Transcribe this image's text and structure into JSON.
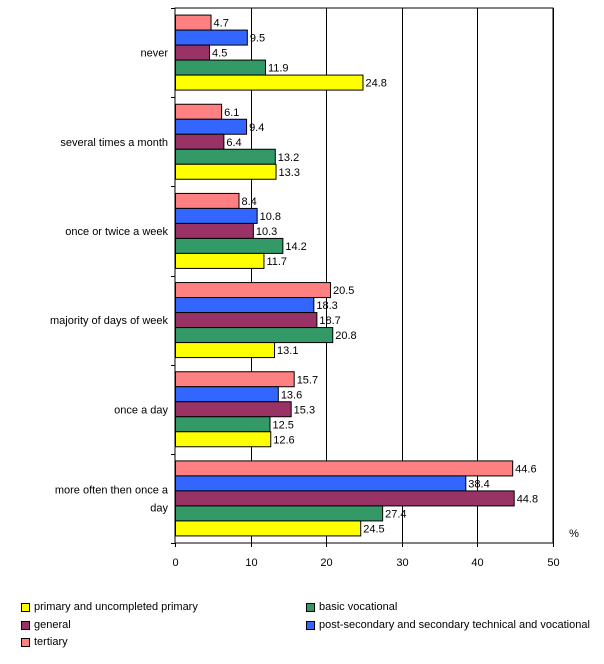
{
  "chart_data": {
    "type": "bar",
    "orientation": "horizontal",
    "categories": [
      "never",
      "several times a month",
      "once or twice a week",
      "majority of days of week",
      "once a day",
      "more often then once a day"
    ],
    "series": [
      {
        "name": "tertiary",
        "color": "#FF8080",
        "values": [
          4.7,
          6.1,
          8.4,
          20.5,
          15.7,
          44.6
        ]
      },
      {
        "name": "post-secondary and secondary technical and vocational",
        "color": "#3366FF",
        "values": [
          9.5,
          9.4,
          10.8,
          18.3,
          13.6,
          38.4
        ]
      },
      {
        "name": "general",
        "color": "#993366",
        "values": [
          4.5,
          6.4,
          10.3,
          18.7,
          15.3,
          44.8
        ]
      },
      {
        "name": "basic vocational",
        "color": "#339966",
        "values": [
          11.9,
          13.2,
          14.2,
          20.8,
          12.5,
          27.4
        ]
      },
      {
        "name": "primary and uncompleted primary",
        "color": "#FFFF00",
        "values": [
          24.8,
          13.3,
          11.7,
          13.1,
          12.6,
          24.5
        ]
      }
    ],
    "xlim": [
      0,
      50
    ],
    "xticks": [
      0,
      10,
      20,
      30,
      40,
      50
    ],
    "unit_label": "%",
    "grid": true,
    "legend_position": "bottom",
    "legend_order": [
      "primary and uncompleted primary",
      "basic vocational",
      "general",
      "post-secondary and secondary technical and vocational",
      "tertiary"
    ]
  }
}
